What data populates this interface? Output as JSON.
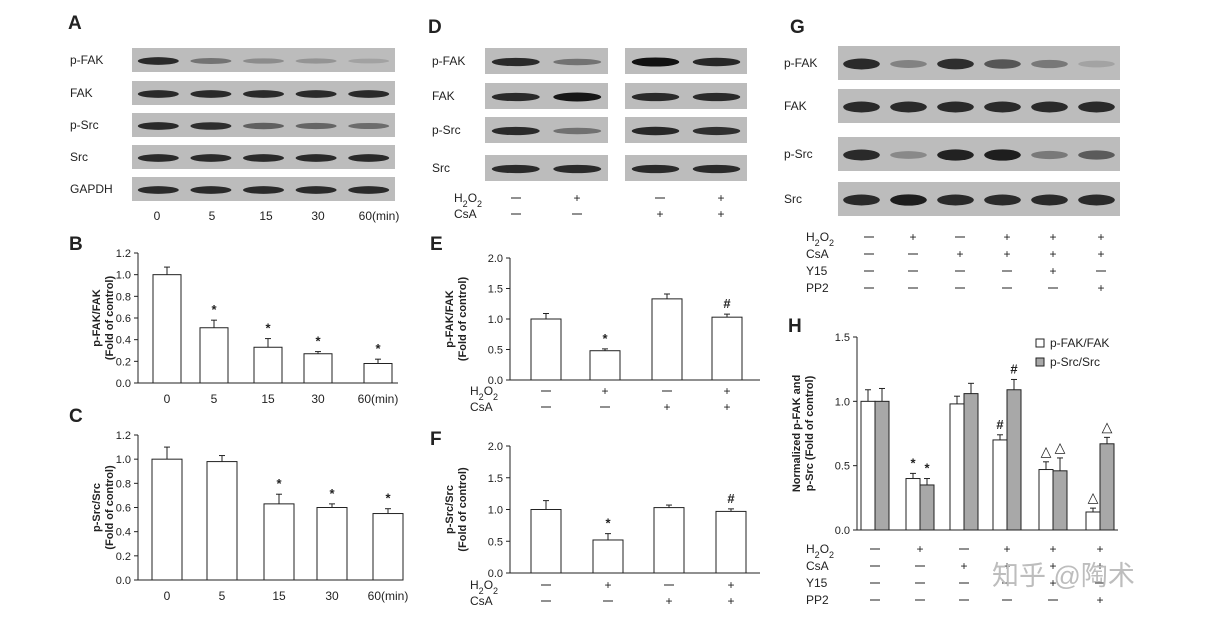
{
  "panels": {
    "A": {
      "label": "A",
      "rows": [
        "p-FAK",
        "FAK",
        "p-Src",
        "Src",
        "GAPDH"
      ],
      "xlabels": [
        "0",
        "5",
        "15",
        "30",
        "60(min)"
      ],
      "intensities": [
        [
          1.0,
          0.5,
          0.33,
          0.27,
          0.18
        ],
        [
          1.0,
          1.0,
          1.0,
          1.0,
          1.0
        ],
        [
          1.0,
          0.98,
          0.63,
          0.6,
          0.55
        ],
        [
          1.0,
          1.0,
          1.0,
          1.0,
          1.0
        ],
        [
          1.0,
          1.0,
          1.0,
          1.0,
          1.0
        ]
      ]
    },
    "D": {
      "label": "D",
      "rows": [
        "p-FAK",
        "FAK",
        "p-Src",
        "Src"
      ],
      "intensities": [
        [
          1.0,
          0.5,
          1.3,
          1.03
        ],
        [
          1.0,
          1.15,
          1.0,
          1.0
        ],
        [
          1.0,
          0.52,
          1.03,
          0.97
        ],
        [
          1.0,
          1.0,
          1.0,
          1.0
        ]
      ],
      "treatments": [
        {
          "label": "H2O2",
          "marks": [
            "—",
            "+",
            "—",
            "+"
          ]
        },
        {
          "label": "CsA",
          "marks": [
            "—",
            "—",
            "+",
            "+"
          ]
        }
      ]
    },
    "G": {
      "label": "G",
      "rows": [
        "p-FAK",
        "FAK",
        "p-Src",
        "Src"
      ],
      "intensities": [
        [
          1.0,
          0.4,
          0.98,
          0.7,
          0.47,
          0.14
        ],
        [
          1.0,
          1.0,
          1.0,
          1.0,
          1.0,
          1.0
        ],
        [
          1.0,
          0.35,
          1.06,
          1.09,
          0.46,
          0.67
        ],
        [
          1.0,
          1.1,
          1.0,
          1.0,
          1.0,
          1.0
        ]
      ],
      "treatments": [
        {
          "label": "H2O2",
          "marks": [
            "—",
            "+",
            "—",
            "+",
            "+",
            "+"
          ]
        },
        {
          "label": "CsA",
          "marks": [
            "—",
            "—",
            "+",
            "+",
            "+",
            "+"
          ]
        },
        {
          "label": "Y15",
          "marks": [
            "—",
            "—",
            "—",
            "—",
            "+",
            "—"
          ]
        },
        {
          "label": "PP2",
          "marks": [
            "—",
            "—",
            "—",
            "—",
            "—",
            "+"
          ]
        }
      ]
    }
  },
  "chart_data": [
    {
      "panel": "B",
      "type": "bar",
      "categories": [
        "0",
        "5",
        "15",
        "30",
        "60(min)"
      ],
      "values": [
        1.0,
        0.51,
        0.33,
        0.27,
        0.18
      ],
      "errors": [
        0.07,
        0.07,
        0.08,
        0.02,
        0.04
      ],
      "marks": [
        "",
        "*",
        "*",
        "*",
        "*"
      ],
      "ylabel": [
        "p-FAK/FAK",
        "(Fold of control)"
      ],
      "ylim": [
        0,
        1.2
      ],
      "yticks": [
        "0.0",
        "0.2",
        "0.4",
        "0.6",
        "0.8",
        "1.0",
        "1.2"
      ]
    },
    {
      "panel": "C",
      "type": "bar",
      "categories": [
        "0",
        "5",
        "15",
        "30",
        "60(min)"
      ],
      "values": [
        1.0,
        0.98,
        0.63,
        0.6,
        0.55
      ],
      "errors": [
        0.1,
        0.05,
        0.08,
        0.03,
        0.04
      ],
      "marks": [
        "",
        "",
        "*",
        "*",
        "*"
      ],
      "ylabel": [
        "p-Src/Src",
        "(Fold of control)"
      ],
      "ylim": [
        0,
        1.2
      ],
      "yticks": [
        "0.0",
        "0.2",
        "0.4",
        "0.6",
        "0.8",
        "1.0",
        "1.2"
      ]
    },
    {
      "panel": "E",
      "type": "bar",
      "values": [
        1.0,
        0.48,
        1.33,
        1.03
      ],
      "errors": [
        0.09,
        0.03,
        0.08,
        0.05
      ],
      "marks": [
        "",
        "*",
        "",
        "#"
      ],
      "ylabel": [
        "p-FAK/FAK",
        "(Fold of control)"
      ],
      "ylim": [
        0,
        2.0
      ],
      "yticks": [
        "0.0",
        "0.5",
        "1.0",
        "1.5",
        "2.0"
      ],
      "treatments": [
        {
          "label": "H2O2",
          "marks": [
            "—",
            "+",
            "—",
            "+"
          ]
        },
        {
          "label": "CsA",
          "marks": [
            "—",
            "—",
            "+",
            "+"
          ]
        }
      ]
    },
    {
      "panel": "F",
      "type": "bar",
      "values": [
        1.0,
        0.52,
        1.03,
        0.97
      ],
      "errors": [
        0.14,
        0.1,
        0.04,
        0.04
      ],
      "marks": [
        "",
        "*",
        "",
        "#"
      ],
      "ylabel": [
        "p-Src/Src",
        "(Fold of control)"
      ],
      "ylim": [
        0,
        2.0
      ],
      "yticks": [
        "0.0",
        "0.5",
        "1.0",
        "1.5",
        "2.0"
      ],
      "treatments": [
        {
          "label": "H2O2",
          "marks": [
            "—",
            "+",
            "—",
            "+"
          ]
        },
        {
          "label": "CsA",
          "marks": [
            "—",
            "—",
            "+",
            "+"
          ]
        }
      ]
    },
    {
      "panel": "H",
      "type": "bar",
      "legend": [
        "p-FAK/FAK",
        "p-Src/Src"
      ],
      "legend_position": "top-right",
      "series": [
        {
          "name": "p-FAK/FAK",
          "color": "#ffffff",
          "values": [
            1.0,
            0.4,
            0.98,
            0.7,
            0.47,
            0.14
          ],
          "errors": [
            0.09,
            0.04,
            0.06,
            0.04,
            0.06,
            0.03
          ],
          "marks": [
            "",
            "*",
            "",
            "#",
            "△",
            "△"
          ]
        },
        {
          "name": "p-Src/Src",
          "color": "#a8a8a8",
          "values": [
            1.0,
            0.35,
            1.06,
            1.09,
            0.46,
            0.67
          ],
          "errors": [
            0.1,
            0.05,
            0.08,
            0.08,
            0.1,
            0.05
          ],
          "marks": [
            "",
            "*",
            "",
            "#",
            "△",
            "△"
          ]
        }
      ],
      "ylabel": [
        "Normalized p-FAK and",
        "p-Src (Fold of control)"
      ],
      "ylim": [
        0,
        1.5
      ],
      "yticks": [
        "0.0",
        "0.5",
        "1.0",
        "1.5"
      ],
      "treatments": [
        {
          "label": "H2O2",
          "marks": [
            "—",
            "+",
            "—",
            "+",
            "+",
            "+"
          ]
        },
        {
          "label": "CsA",
          "marks": [
            "—",
            "—",
            "+",
            "+",
            "+",
            "+"
          ]
        },
        {
          "label": "Y15",
          "marks": [
            "—",
            "—",
            "—",
            "—",
            "+",
            "—"
          ]
        },
        {
          "label": "PP2",
          "marks": [
            "—",
            "—",
            "—",
            "—",
            "—",
            "+"
          ]
        }
      ]
    }
  ],
  "watermark": "知乎 @陶术"
}
